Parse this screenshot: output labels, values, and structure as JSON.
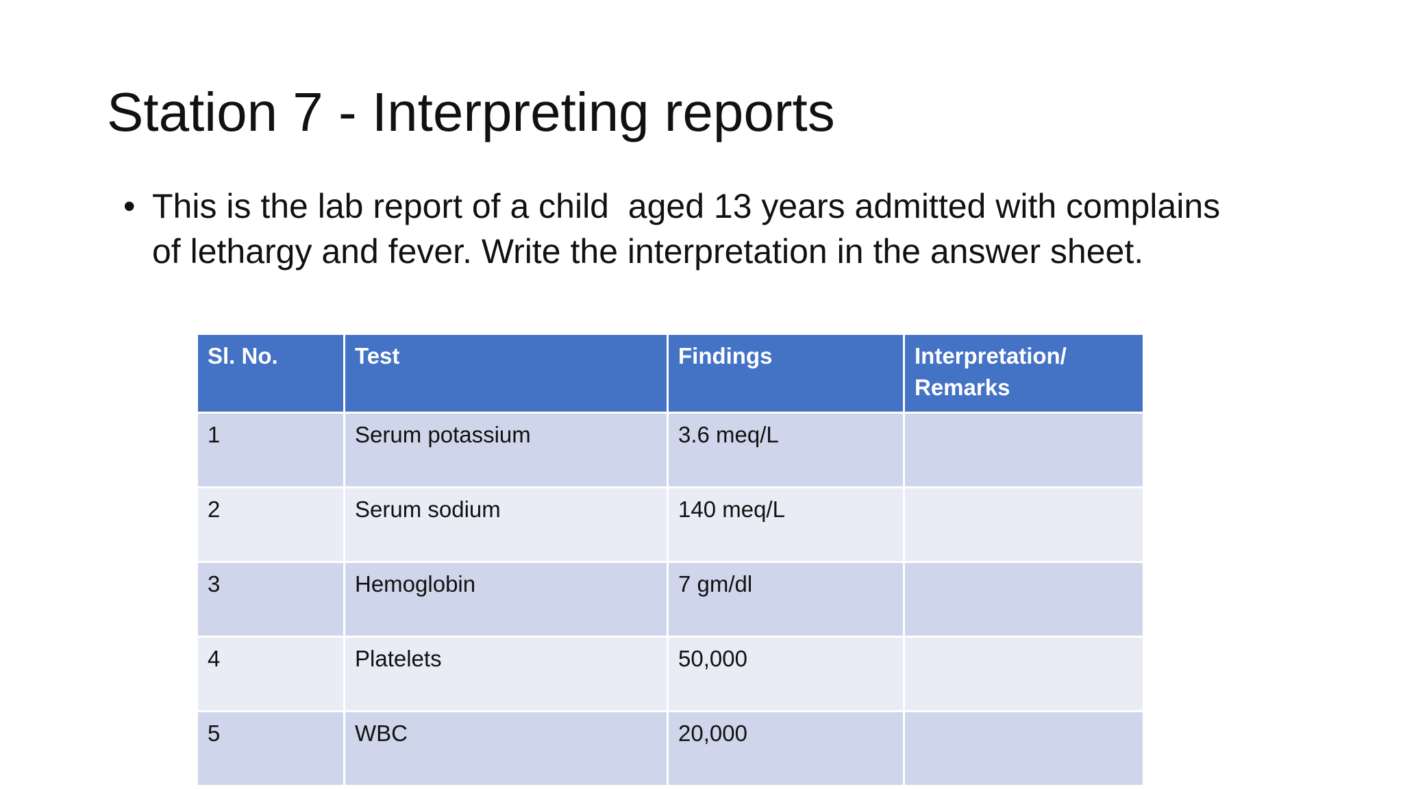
{
  "slide": {
    "title": "Station 7 - Interpreting reports",
    "bullet": "This is the lab report of a child  aged 13 years admitted with complains of lethargy and fever. Write the interpretation in the answer sheet.",
    "table": {
      "header": [
        "Sl. No.",
        "Test",
        "Findings",
        "Interpretation/ Remarks"
      ],
      "rows": [
        [
          "1",
          "Serum potassium",
          "3.6 meq/L"
        ],
        [
          "2",
          "Serum sodium",
          "140 meq/L"
        ],
        [
          "3",
          "Hemoglobin",
          "7  gm/dl"
        ],
        [
          "4",
          "Platelets",
          "50,000"
        ],
        [
          "5",
          "WBC",
          "20,000"
        ]
      ]
    }
  }
}
